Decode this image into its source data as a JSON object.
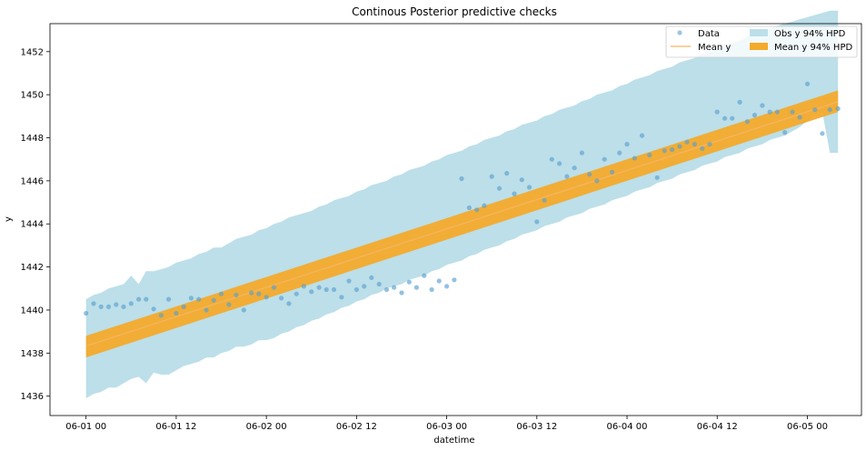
{
  "chart_data": {
    "type": "line",
    "title": "Continous Posterior predictive checks",
    "xlabel": "datetime",
    "ylabel": "y",
    "xlim": [
      -0.2,
      4.3
    ],
    "ylim": [
      1435.1,
      1453.3
    ],
    "x_tick_labels": [
      "06-01 00",
      "06-01 12",
      "06-02 00",
      "06-02 12",
      "06-03 00",
      "06-03 12",
      "06-04 00",
      "06-04 12",
      "06-05 00"
    ],
    "x_tick_values": [
      0,
      0.5,
      1,
      1.5,
      2,
      2.5,
      3,
      3.5,
      4
    ],
    "y_ticks": [
      1436,
      1438,
      1440,
      1442,
      1444,
      1446,
      1448,
      1450,
      1452
    ],
    "grid": false,
    "legend_position": "top-right",
    "legend": {
      "data": "Data",
      "mean": "Mean y",
      "obs_hpd": "Obs y 94% HPD",
      "mean_hpd": "Mean y 94% HPD"
    },
    "colors": {
      "data": "#5b9fcf",
      "mean": "#f5b560",
      "obs_hpd": "#bcdfe9",
      "mean_hpd": "#f3aa2c"
    },
    "mean_line": {
      "x": [
        0,
        4.17
      ],
      "y": [
        1438.33,
        1449.67
      ]
    },
    "mean_hpd": {
      "x": [
        0,
        4.17
      ],
      "lower": [
        1437.8,
        1449.2
      ],
      "upper": [
        1438.8,
        1450.2
      ]
    },
    "obs_hpd": {
      "x": [
        0,
        0.042,
        0.083,
        0.125,
        0.167,
        0.208,
        0.25,
        0.292,
        0.333,
        0.375,
        0.417,
        0.458,
        0.5,
        0.542,
        0.583,
        0.625,
        0.667,
        0.708,
        0.75,
        0.792,
        0.833,
        0.875,
        0.917,
        0.958,
        1,
        1.042,
        1.083,
        1.125,
        1.167,
        1.208,
        1.25,
        1.292,
        1.333,
        1.375,
        1.417,
        1.458,
        1.5,
        1.542,
        1.583,
        1.625,
        1.667,
        1.708,
        1.75,
        1.792,
        1.833,
        1.875,
        1.917,
        1.958,
        2,
        2.042,
        2.083,
        2.125,
        2.167,
        2.208,
        2.25,
        2.292,
        2.333,
        2.375,
        2.417,
        2.458,
        2.5,
        2.542,
        2.583,
        2.625,
        2.667,
        2.708,
        2.75,
        2.792,
        2.833,
        2.875,
        2.917,
        2.958,
        3,
        3.042,
        3.083,
        3.125,
        3.167,
        3.208,
        3.25,
        3.292,
        3.333,
        3.375,
        3.417,
        3.458,
        3.5,
        3.542,
        3.583,
        3.625,
        3.667,
        3.708,
        3.75,
        3.792,
        3.833,
        3.875,
        3.917,
        3.958,
        4,
        4.042,
        4.083,
        4.125,
        4.17
      ],
      "lower": [
        1435.9,
        1436.1,
        1436.2,
        1436.4,
        1436.4,
        1436.6,
        1436.8,
        1436.9,
        1436.6,
        1437.1,
        1437.0,
        1437.0,
        1437.2,
        1437.4,
        1437.5,
        1437.6,
        1437.8,
        1437.8,
        1438.0,
        1438.1,
        1438.3,
        1438.3,
        1438.4,
        1438.6,
        1438.6,
        1438.7,
        1438.9,
        1439.0,
        1439.2,
        1439.3,
        1439.5,
        1439.6,
        1439.8,
        1439.9,
        1440.1,
        1440.2,
        1440.4,
        1440.5,
        1440.7,
        1440.8,
        1441.0,
        1441.1,
        1441.2,
        1441.4,
        1441.5,
        1441.6,
        1441.8,
        1441.9,
        1442.1,
        1442.2,
        1442.3,
        1442.5,
        1442.6,
        1442.8,
        1442.9,
        1443.0,
        1443.2,
        1443.3,
        1443.5,
        1443.6,
        1443.7,
        1443.9,
        1444.0,
        1444.1,
        1444.3,
        1444.4,
        1444.5,
        1444.7,
        1444.8,
        1444.9,
        1445.1,
        1445.2,
        1445.3,
        1445.5,
        1445.6,
        1445.7,
        1445.9,
        1446.0,
        1446.1,
        1446.3,
        1446.4,
        1446.5,
        1446.7,
        1446.8,
        1446.9,
        1447.1,
        1447.2,
        1447.3,
        1447.5,
        1447.6,
        1447.7,
        1447.9,
        1448.0,
        1448.1,
        1448.3,
        1448.5,
        1448.8,
        1449.1,
        1449.2,
        1447.3,
        1447.3
      ],
      "upper": [
        1440.5,
        1440.7,
        1440.8,
        1441.0,
        1441.1,
        1441.2,
        1441.6,
        1441.2,
        1441.8,
        1441.8,
        1441.9,
        1442.0,
        1442.2,
        1442.3,
        1442.4,
        1442.6,
        1442.7,
        1442.9,
        1442.9,
        1443.1,
        1443.3,
        1443.4,
        1443.5,
        1443.7,
        1443.8,
        1444.0,
        1444.1,
        1444.3,
        1444.4,
        1444.5,
        1444.6,
        1444.8,
        1444.9,
        1445.1,
        1445.2,
        1445.3,
        1445.5,
        1445.6,
        1445.8,
        1445.9,
        1446.0,
        1446.2,
        1446.3,
        1446.5,
        1446.6,
        1446.7,
        1446.9,
        1447.0,
        1447.2,
        1447.3,
        1447.4,
        1447.6,
        1447.7,
        1447.9,
        1448.0,
        1448.1,
        1448.3,
        1448.4,
        1448.6,
        1448.7,
        1448.8,
        1449.0,
        1449.1,
        1449.3,
        1449.4,
        1449.5,
        1449.7,
        1449.8,
        1450.0,
        1450.1,
        1450.2,
        1450.4,
        1450.5,
        1450.7,
        1450.8,
        1450.9,
        1451.1,
        1451.2,
        1451.3,
        1451.5,
        1451.6,
        1451.7,
        1451.9,
        1452.0,
        1452.1,
        1452.3,
        1452.4,
        1452.5,
        1452.7,
        1452.8,
        1452.9,
        1453.1,
        1453.2,
        1453.3,
        1453.4,
        1453.5,
        1453.6,
        1453.7,
        1453.8,
        1453.9,
        1453.9
      ]
    },
    "data_points": {
      "x": [
        0,
        0.042,
        0.083,
        0.125,
        0.167,
        0.208,
        0.25,
        0.292,
        0.333,
        0.375,
        0.417,
        0.458,
        0.5,
        0.542,
        0.583,
        0.625,
        0.667,
        0.708,
        0.75,
        0.792,
        0.833,
        0.875,
        0.917,
        0.958,
        1,
        1.042,
        1.083,
        1.125,
        1.167,
        1.208,
        1.25,
        1.292,
        1.333,
        1.375,
        1.417,
        1.458,
        1.5,
        1.542,
        1.583,
        1.625,
        1.667,
        1.708,
        1.75,
        1.792,
        1.833,
        1.875,
        1.917,
        1.958,
        2,
        2.042,
        2.083,
        2.125,
        2.167,
        2.208,
        2.25,
        2.292,
        2.333,
        2.375,
        2.417,
        2.458,
        2.5,
        2.542,
        2.583,
        2.625,
        2.667,
        2.708,
        2.75,
        2.792,
        2.833,
        2.875,
        2.917,
        2.958,
        3,
        3.042,
        3.083,
        3.125,
        3.167,
        3.208,
        3.25,
        3.292,
        3.333,
        3.375,
        3.417,
        3.458,
        3.5,
        3.542,
        3.583,
        3.625,
        3.667,
        3.708,
        3.75,
        3.792,
        3.833,
        3.875,
        3.917,
        3.958,
        4,
        4.042,
        4.083,
        4.125,
        4.17
      ],
      "y": [
        1439.85,
        1440.3,
        1440.15,
        1440.15,
        1440.25,
        1440.15,
        1440.3,
        1440.5,
        1440.5,
        1440.05,
        1439.75,
        1440.5,
        1439.85,
        1440.15,
        1440.55,
        1440.5,
        1440.0,
        1440.45,
        1440.75,
        1440.25,
        1440.7,
        1440.0,
        1440.8,
        1440.75,
        1440.6,
        1441.05,
        1440.55,
        1440.3,
        1440.75,
        1441.1,
        1440.85,
        1441.05,
        1440.95,
        1440.95,
        1440.6,
        1441.35,
        1440.95,
        1441.1,
        1441.5,
        1441.2,
        1440.95,
        1441.05,
        1440.8,
        1441.3,
        1441.05,
        1441.6,
        1440.95,
        1441.35,
        1441.1,
        1441.4,
        1446.1,
        1444.75,
        1444.65,
        1444.85,
        1446.2,
        1445.65,
        1446.35,
        1445.4,
        1446.05,
        1445.7,
        1444.1,
        1445.1,
        1447.0,
        1446.8,
        1446.2,
        1446.6,
        1447.3,
        1446.3,
        1446.0,
        1447.0,
        1446.4,
        1447.3,
        1447.7,
        1447.05,
        1448.1,
        1447.2,
        1446.15,
        1447.4,
        1447.45,
        1447.6,
        1447.8,
        1447.7,
        1447.5,
        1447.7,
        1449.2,
        1448.9,
        1448.9,
        1449.65,
        1448.75,
        1449.05,
        1449.5,
        1449.2,
        1449.2,
        1448.25,
        1449.2,
        1448.95,
        1450.5,
        1449.3,
        1448.2,
        1449.3,
        1449.35
      ]
    }
  }
}
